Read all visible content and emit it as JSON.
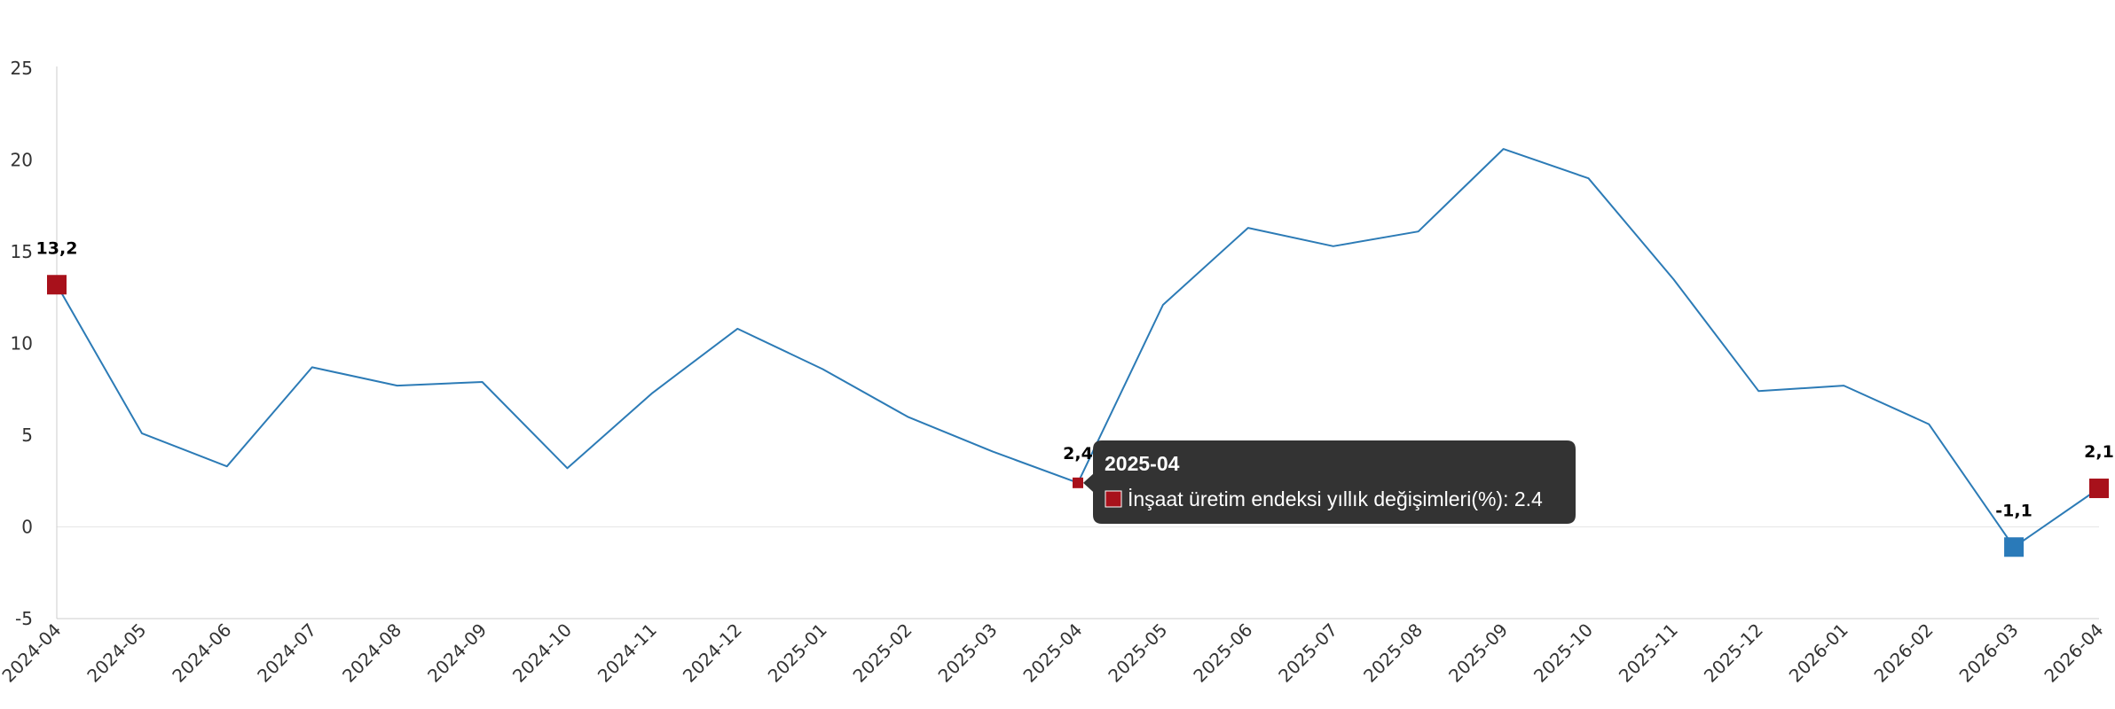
{
  "chart_data": {
    "type": "line",
    "title": "",
    "xlabel": "",
    "ylabel": "",
    "ylim": [
      -5,
      25
    ],
    "y_ticks": [
      -5,
      0,
      5,
      10,
      15,
      20,
      25
    ],
    "grid": {
      "horizontal": false,
      "vertical": false,
      "zero_line": true
    },
    "legend": "none",
    "categories": [
      "2024-04",
      "2024-05",
      "2024-06",
      "2024-07",
      "2024-08",
      "2024-09",
      "2024-10",
      "2024-11",
      "2024-12",
      "2025-01",
      "2025-02",
      "2025-03",
      "2025-04",
      "2025-05",
      "2025-06",
      "2025-07",
      "2025-08",
      "2025-09",
      "2025-10",
      "2025-11",
      "2025-12",
      "2026-01",
      "2026-02",
      "2026-03",
      "2026-04"
    ],
    "series": [
      {
        "name": "İnşaat üretim endeksi yıllık değişimleri(%)",
        "color": "#2c7bb6",
        "values": [
          13.2,
          5.1,
          3.3,
          8.7,
          7.7,
          7.9,
          3.2,
          7.3,
          10.8,
          8.6,
          6.0,
          4.1,
          2.4,
          12.1,
          16.3,
          15.3,
          16.1,
          20.6,
          19.0,
          13.5,
          7.4,
          7.7,
          5.6,
          -1.1,
          2.1
        ]
      }
    ],
    "markers": [
      {
        "category": "2024-04",
        "value": 13.2,
        "label": "13,2",
        "color": "#a8111b"
      },
      {
        "category": "2025-04",
        "value": 2.4,
        "label": "2,4",
        "color": "#a8111b"
      },
      {
        "category": "2026-03",
        "value": -1.1,
        "label": "-1,1",
        "color": "#2a7ab9"
      },
      {
        "category": "2026-04",
        "value": 2.1,
        "label": "2,1",
        "color": "#a8111b"
      }
    ],
    "tooltip": {
      "category": "2025-04",
      "title": "2025-04",
      "text": "İnşaat üretim endeksi yıllık değişimleri(%): 2.4",
      "swatch_color": "#a8111b",
      "background": "#333333"
    }
  }
}
